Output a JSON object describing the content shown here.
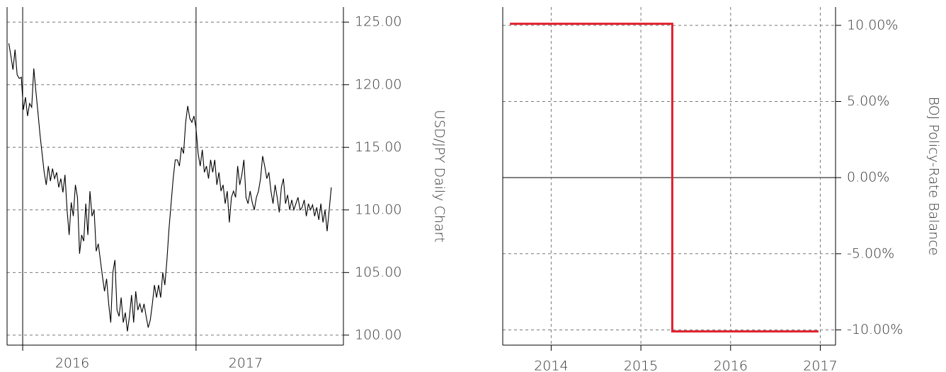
{
  "chart_data": [
    {
      "type": "line",
      "y_label": "USD/JPY Daily Chart",
      "color": "#000000",
      "xlim": [
        2015.91,
        2017.85
      ],
      "xticks": [
        2016,
        2017
      ],
      "ylim": [
        99.2,
        126.2
      ],
      "yticks": [
        {
          "value": 100,
          "label": "100.00"
        },
        {
          "value": 105,
          "label": "105.00"
        },
        {
          "value": 110,
          "label": "110.00"
        },
        {
          "value": 115,
          "label": "115.00"
        },
        {
          "value": 120,
          "label": "120.00"
        },
        {
          "value": 125,
          "label": "125.00"
        }
      ],
      "grid": true,
      "x": [
        2015.92,
        2015.932,
        2015.944,
        2015.956,
        2015.968,
        2015.98,
        2015.992,
        2016.004,
        2016.016,
        2016.028,
        2016.04,
        2016.052,
        2016.064,
        2016.076,
        2016.088,
        2016.1,
        2016.112,
        2016.124,
        2016.136,
        2016.148,
        2016.16,
        2016.172,
        2016.184,
        2016.196,
        2016.208,
        2016.22,
        2016.232,
        2016.244,
        2016.256,
        2016.268,
        2016.28,
        2016.292,
        2016.304,
        2016.316,
        2016.328,
        2016.34,
        2016.352,
        2016.364,
        2016.376,
        2016.388,
        2016.4,
        2016.412,
        2016.424,
        2016.436,
        2016.448,
        2016.46,
        2016.472,
        2016.484,
        2016.496,
        2016.508,
        2016.52,
        2016.532,
        2016.544,
        2016.556,
        2016.568,
        2016.58,
        2016.592,
        2016.604,
        2016.616,
        2016.628,
        2016.64,
        2016.652,
        2016.664,
        2016.676,
        2016.688,
        2016.7,
        2016.712,
        2016.724,
        2016.736,
        2016.748,
        2016.76,
        2016.772,
        2016.784,
        2016.796,
        2016.808,
        2016.82,
        2016.832,
        2016.844,
        2016.856,
        2016.868,
        2016.88,
        2016.892,
        2016.904,
        2016.916,
        2016.928,
        2016.94,
        2016.952,
        2016.964,
        2016.976,
        2016.988,
        2017.0,
        2017.012,
        2017.024,
        2017.036,
        2017.048,
        2017.06,
        2017.072,
        2017.084,
        2017.096,
        2017.108,
        2017.12,
        2017.132,
        2017.144,
        2017.156,
        2017.168,
        2017.18,
        2017.192,
        2017.204,
        2017.216,
        2017.228,
        2017.24,
        2017.252,
        2017.264,
        2017.276,
        2017.288,
        2017.3,
        2017.312,
        2017.324,
        2017.336,
        2017.348,
        2017.36,
        2017.372,
        2017.384,
        2017.396,
        2017.408,
        2017.42,
        2017.432,
        2017.444,
        2017.456,
        2017.468,
        2017.48,
        2017.492,
        2017.504,
        2017.516,
        2017.528,
        2017.54,
        2017.552,
        2017.564,
        2017.576,
        2017.588,
        2017.6,
        2017.612,
        2017.624,
        2017.636,
        2017.648,
        2017.66,
        2017.672,
        2017.684,
        2017.696,
        2017.708,
        2017.72,
        2017.732,
        2017.744,
        2017.756,
        2017.768,
        2017.78
      ],
      "values": [
        123.3,
        122.3,
        121.2,
        122.8,
        120.8,
        120.5,
        120.6,
        118.0,
        119.0,
        117.5,
        118.5,
        118.2,
        121.3,
        119.5,
        117.8,
        116.0,
        114.5,
        113.0,
        112.0,
        113.5,
        112.3,
        113.3,
        112.5,
        113.0,
        111.8,
        112.5,
        111.4,
        112.8,
        110.0,
        108.0,
        110.6,
        109.5,
        112.0,
        111.0,
        106.5,
        108.0,
        107.5,
        110.5,
        108.0,
        111.5,
        109.5,
        110.0,
        106.7,
        107.3,
        106.0,
        104.7,
        103.5,
        104.5,
        102.5,
        101.0,
        105.0,
        106.0,
        102.0,
        101.5,
        103.0,
        101.0,
        101.8,
        100.3,
        101.5,
        103.2,
        101.0,
        103.5,
        102.0,
        102.5,
        101.8,
        102.5,
        101.5,
        100.6,
        101.2,
        102.5,
        104.0,
        103.0,
        104.0,
        103.0,
        105.0,
        104.0,
        106.0,
        108.5,
        110.5,
        112.5,
        114.0,
        114.0,
        113.5,
        115.0,
        114.5,
        117.0,
        118.3,
        117.3,
        117.0,
        117.5,
        116.5,
        114.5,
        113.5,
        114.8,
        113.0,
        113.5,
        112.5,
        114.0,
        113.0,
        114.0,
        112.0,
        113.0,
        111.5,
        112.0,
        110.5,
        111.5,
        109.0,
        111.0,
        111.5,
        111.0,
        113.5,
        112.0,
        112.8,
        114.0,
        111.0,
        110.5,
        111.5,
        110.6,
        110.0,
        111.0,
        111.5,
        112.5,
        114.3,
        113.5,
        112.5,
        113.0,
        111.5,
        110.5,
        112.0,
        111.0,
        109.8,
        111.8,
        112.5,
        110.5,
        111.2,
        110.0,
        110.8,
        110.0,
        110.5,
        111.0,
        110.0,
        110.2,
        110.8,
        109.5,
        110.5,
        110.0,
        110.4,
        109.5,
        110.2,
        109.2,
        110.5,
        109.0,
        110.0,
        108.3,
        110.0,
        111.8
      ]
    },
    {
      "type": "line",
      "y_label": "BOJ Policy-Rate Balance",
      "color": "#e0202c",
      "xlim": [
        2013.46,
        2017.17
      ],
      "xticks": [
        2014,
        2015,
        2016,
        2017
      ],
      "ylim": [
        -11,
        11.2
      ],
      "yticks": [
        {
          "value": -10,
          "label": "-10.00%"
        },
        {
          "value": -5,
          "label": "-5.00%"
        },
        {
          "value": 0,
          "label": "0.00%"
        },
        {
          "value": 5,
          "label": "5.00%"
        },
        {
          "value": 10,
          "label": "10.00%"
        }
      ],
      "grid": true,
      "x": [
        2013.54,
        2015.35,
        2015.35,
        2016.98
      ],
      "values": [
        10.1,
        10.1,
        -10.1,
        -10.1
      ]
    }
  ]
}
